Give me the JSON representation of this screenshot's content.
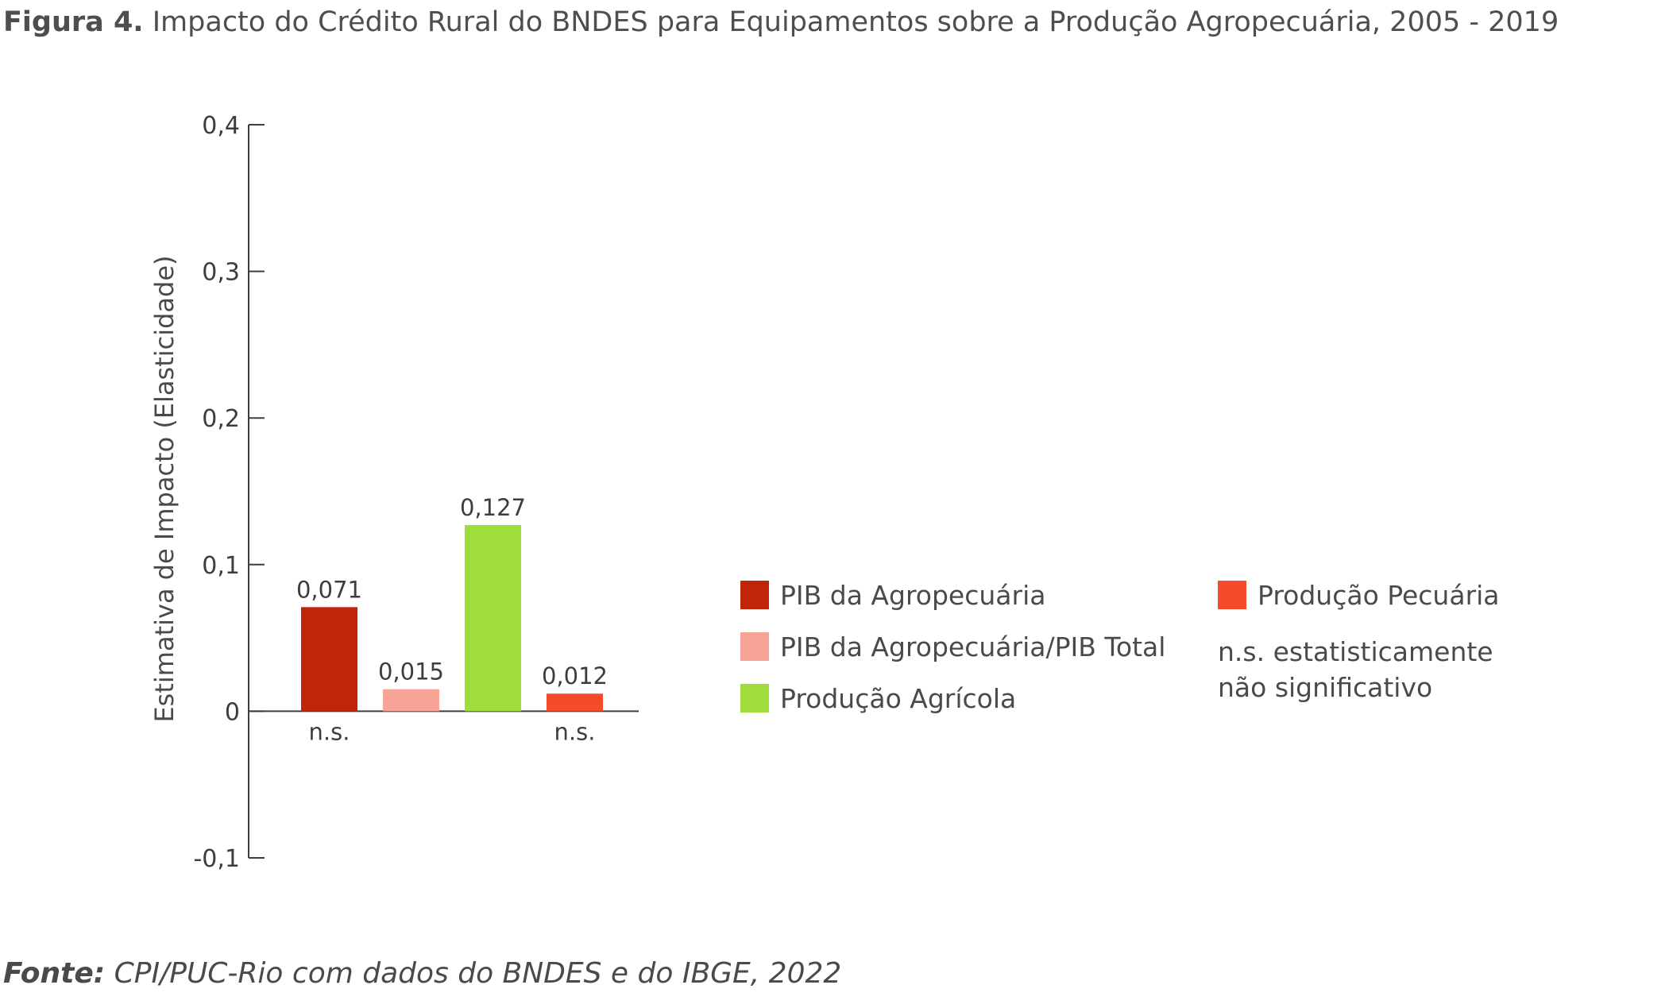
{
  "title": {
    "figure_label": "Figura 4.",
    "text": "Impacto do Crédito Rural do BNDES para Equipamentos sobre a Produção Agropecuária, 2005 - 2019"
  },
  "source": {
    "label": "Fonte:",
    "text": "CPI/PUC-Rio com dados do BNDES e do IBGE, 2022"
  },
  "chart_data": {
    "type": "bar",
    "title": "Impacto do Crédito Rural do BNDES para Equipamentos sobre a Produção Agropecuária, 2005 - 2019",
    "xlabel": "",
    "ylabel": "Estimativa de Impacto (Elasticidade)",
    "ylim": [
      -0.1,
      0.4
    ],
    "yticks": [
      -0.1,
      0,
      0.1,
      0.2,
      0.3,
      0.4
    ],
    "ytick_labels": [
      "-0,1",
      "0",
      "0,1",
      "0,2",
      "0,3",
      "0,4"
    ],
    "grid": false,
    "legend_position": "right",
    "series": [
      {
        "name": "PIB da Agropecuária",
        "value": 0.071,
        "label": "0,071",
        "color": "#bf2608",
        "significance": "n.s."
      },
      {
        "name": "PIB da Agropecuária/PIB Total",
        "value": 0.015,
        "label": "0,015",
        "color": "#f7a497",
        "significance": ""
      },
      {
        "name": "Produção Agrícola",
        "value": 0.127,
        "label": "0,127",
        "color": "#9fdd3a",
        "significance": ""
      },
      {
        "name": "Produção Pecuária",
        "value": 0.012,
        "label": "0,012",
        "color": "#f44b2d",
        "significance": "n.s."
      }
    ],
    "legend_note": [
      "n.s. estatisticamente",
      "não significativo"
    ]
  }
}
